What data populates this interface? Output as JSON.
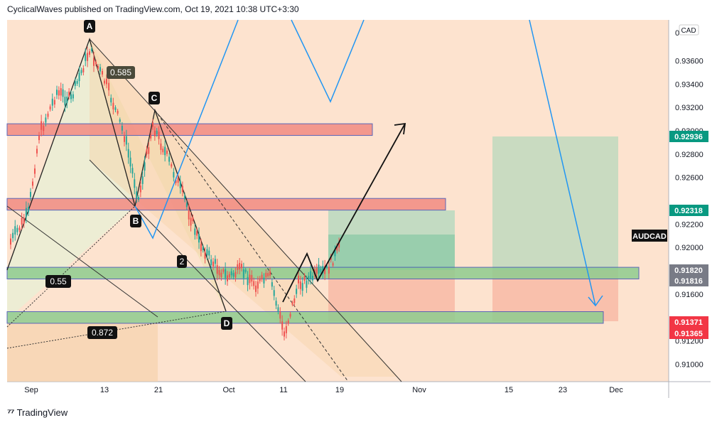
{
  "header": {
    "publisher_line": "CyclicalWaves published on TradingView.com, Oct 19, 2021 10:38 UTC+3:30"
  },
  "footer": {
    "brand": "TradingView",
    "logo_icon": "tradingview-logo-icon"
  },
  "chart_data": {
    "type": "candlestick",
    "symbol": "AUDCAD",
    "currency": "CAD",
    "x_ticks": [
      "Sep",
      "13",
      "21",
      "Oct",
      "11",
      "19",
      "Nov",
      "15",
      "23",
      "Dec"
    ],
    "y_ticks": [
      "0.91000",
      "0.91200",
      "0.91600",
      "0.92000",
      "0.92200",
      "0.92600",
      "0.92800",
      "0.93000",
      "0.93200",
      "0.93400",
      "0.93600",
      "0"
    ],
    "ylim": [
      0.9085,
      0.9395
    ],
    "price_labels": [
      {
        "text": "0.92936",
        "value": 0.92936,
        "color": "#089981"
      },
      {
        "text": "0.92318",
        "value": 0.92318,
        "color": "#089981"
      },
      {
        "text": "0.91820",
        "value": 0.9182,
        "color": "#787b86"
      },
      {
        "text": "0.91816",
        "value": 0.91816,
        "color": "#787b86"
      },
      {
        "text": "0.91371",
        "value": 0.91371,
        "color": "#f23645"
      },
      {
        "text": "0.91365",
        "value": 0.91365,
        "color": "#f23645"
      }
    ],
    "symbol_badge": "AUDCAD",
    "pattern_points": [
      {
        "label": "A",
        "date": "2021-09-10",
        "price": 0.9355
      },
      {
        "label": "B",
        "date": "2021-09-20",
        "price": 0.9231
      },
      {
        "label": "C",
        "date": "2021-09-21",
        "price": 0.9316
      },
      {
        "label": "D",
        "date": "2021-09-30",
        "price": 0.9143
      }
    ],
    "fib_labels": [
      {
        "text": "0.585"
      },
      {
        "text": "0.55"
      },
      {
        "text": "0.872"
      },
      {
        "text": "2"
      }
    ],
    "zones": [
      {
        "kind": "resistance",
        "price_low": 0.9296,
        "price_high": 0.9306,
        "color": "#f28b82"
      },
      {
        "kind": "resistance",
        "price_low": 0.9232,
        "price_high": 0.9242,
        "color": "#f28b82"
      },
      {
        "kind": "support",
        "price_low": 0.9173,
        "price_high": 0.9183,
        "color": "#8fcc8f"
      },
      {
        "kind": "support",
        "price_low": 0.9135,
        "price_high": 0.9145,
        "color": "#8fcc8f"
      }
    ]
  }
}
